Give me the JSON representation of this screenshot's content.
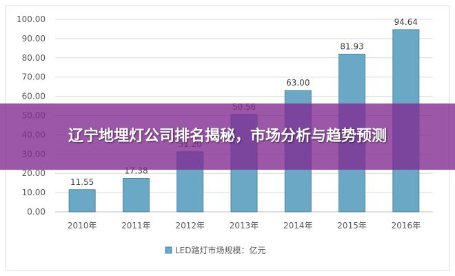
{
  "overlay": {
    "title": "辽宁地埋灯公司排名揭秘，市场分析与趋势预测"
  },
  "colors": {
    "bar_fill": "#6aa8c6",
    "bar_stroke": "#4a86a8",
    "grid": "#d9d9d9",
    "axis": "#bfbfbf",
    "text": "#595959",
    "overlay": "#802891"
  },
  "chart_data": {
    "type": "bar",
    "categories": [
      "2010年",
      "2011年",
      "2012年",
      "2013年",
      "2014年",
      "2015年",
      "2016年"
    ],
    "series": [
      {
        "name": "LED路灯市场规模：亿元",
        "values": [
          11.55,
          17.38,
          31.2,
          50.56,
          63.0,
          81.93,
          94.64
        ]
      }
    ],
    "data_labels": [
      "11.55",
      "17.38",
      "31.20",
      "50.56",
      "63.00",
      "81.93",
      "94.64"
    ],
    "y_ticks": [
      "0.00",
      "10.00",
      "20.00",
      "30.00",
      "40.00",
      "50.00",
      "60.00",
      "70.00",
      "80.00",
      "90.00",
      "100.00"
    ],
    "ylim": [
      0,
      100
    ],
    "grid": true,
    "legend": "bottom"
  }
}
